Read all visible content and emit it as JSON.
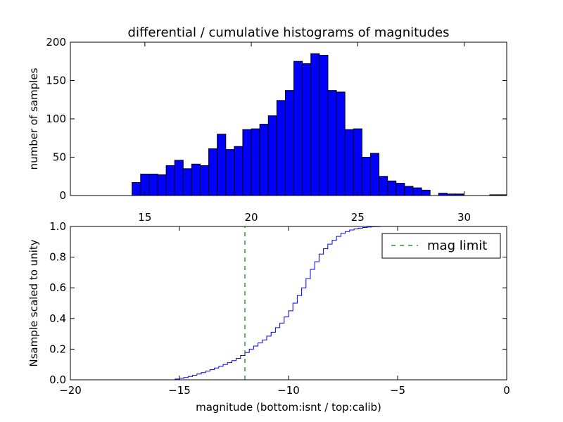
{
  "figure": {
    "title": "differential / cumulative histograms of magnitudes",
    "xlabel": "magnitude (bottom:isnt / top:calib)"
  },
  "chart_data": [
    {
      "type": "bar",
      "name": "differential-histogram",
      "title": "differential / cumulative histograms of magnitudes",
      "ylabel": "number of samples",
      "xlabel": "",
      "xlim": [
        11.5,
        32
      ],
      "ylim": [
        0,
        200
      ],
      "x_ticks": [
        15,
        20,
        25,
        30
      ],
      "x_tick_labels": [
        "15",
        "20",
        "25",
        "30"
      ],
      "y_ticks": [
        0,
        50,
        100,
        150,
        200
      ],
      "y_tick_labels": [
        "0",
        "50",
        "100",
        "150",
        "200"
      ],
      "bar_color": "#0000ff",
      "bin_edges": [
        14.4,
        14.8,
        15.2,
        15.6,
        16.0,
        16.4,
        16.8,
        17.2,
        17.6,
        18.0,
        18.4,
        18.8,
        19.2,
        19.6,
        20.0,
        20.4,
        20.8,
        21.2,
        21.6,
        22.0,
        22.4,
        22.8,
        23.2,
        23.6,
        24.0,
        24.4,
        24.8,
        25.2,
        25.6,
        26.0,
        26.4,
        26.8,
        27.2,
        27.6,
        28.0,
        28.4,
        28.8,
        29.2,
        29.6,
        30.0,
        30.4,
        30.8,
        31.2,
        31.6,
        32.0
      ],
      "values": [
        17,
        28,
        28,
        27,
        39,
        46,
        35,
        41,
        39,
        61,
        80,
        60,
        64,
        86,
        87,
        93,
        104,
        124,
        137,
        175,
        172,
        185,
        183,
        137,
        135,
        86,
        87,
        50,
        55,
        25,
        19,
        16,
        12,
        10,
        7,
        0,
        3,
        2,
        2,
        0,
        0,
        0,
        1,
        1
      ]
    },
    {
      "type": "line",
      "name": "cumulative-histogram",
      "ylabel": "Nsample scaled to unity",
      "xlabel": "magnitude (bottom:isnt / top:calib)",
      "xlim": [
        -20,
        0
      ],
      "ylim": [
        0,
        1
      ],
      "x_ticks": [
        -20,
        -15,
        -10,
        -5,
        0
      ],
      "x_tick_labels": [
        "−20",
        "−15",
        "−10",
        "−5",
        "0"
      ],
      "y_ticks": [
        0,
        0.2,
        0.4,
        0.6,
        0.8,
        1.0
      ],
      "y_tick_labels": [
        "0.0",
        "0.2",
        "0.4",
        "0.6",
        "0.8",
        "1.0"
      ],
      "series": [
        {
          "name": "cumulative",
          "color": "#0000ff",
          "style": "step",
          "x": [
            -20,
            -15.2,
            -15.0,
            -14.8,
            -14.6,
            -14.4,
            -14.2,
            -14.0,
            -13.8,
            -13.6,
            -13.4,
            -13.2,
            -13.0,
            -12.8,
            -12.6,
            -12.4,
            -12.2,
            -12.0,
            -11.8,
            -11.6,
            -11.4,
            -11.2,
            -11.0,
            -10.8,
            -10.6,
            -10.4,
            -10.2,
            -10.0,
            -9.8,
            -9.6,
            -9.4,
            -9.2,
            -9.0,
            -8.8,
            -8.6,
            -8.4,
            -8.2,
            -8.0,
            -7.8,
            -7.6,
            -7.4,
            -7.2,
            -7.0,
            -6.8,
            -6.6,
            -6.4,
            -6.2,
            -6.0,
            -5.8,
            -5.6,
            0
          ],
          "y": [
            0,
            0.005,
            0.01,
            0.015,
            0.022,
            0.03,
            0.038,
            0.047,
            0.056,
            0.066,
            0.077,
            0.088,
            0.1,
            0.112,
            0.125,
            0.14,
            0.158,
            0.178,
            0.2,
            0.22,
            0.24,
            0.26,
            0.285,
            0.31,
            0.34,
            0.37,
            0.41,
            0.45,
            0.5,
            0.55,
            0.6,
            0.66,
            0.72,
            0.77,
            0.82,
            0.855,
            0.885,
            0.91,
            0.935,
            0.955,
            0.967,
            0.977,
            0.984,
            0.989,
            0.993,
            0.996,
            0.998,
            0.999,
            1.0,
            1.0,
            1.0
          ]
        },
        {
          "name": "mag limit",
          "color": "#008000",
          "style": "dashed-vertical",
          "x": [
            -12,
            -12
          ],
          "y": [
            0,
            1
          ]
        }
      ],
      "legend": {
        "position": "top-right",
        "entries": [
          {
            "label": "mag limit",
            "color": "#008000",
            "style": "dashed"
          }
        ]
      }
    }
  ]
}
